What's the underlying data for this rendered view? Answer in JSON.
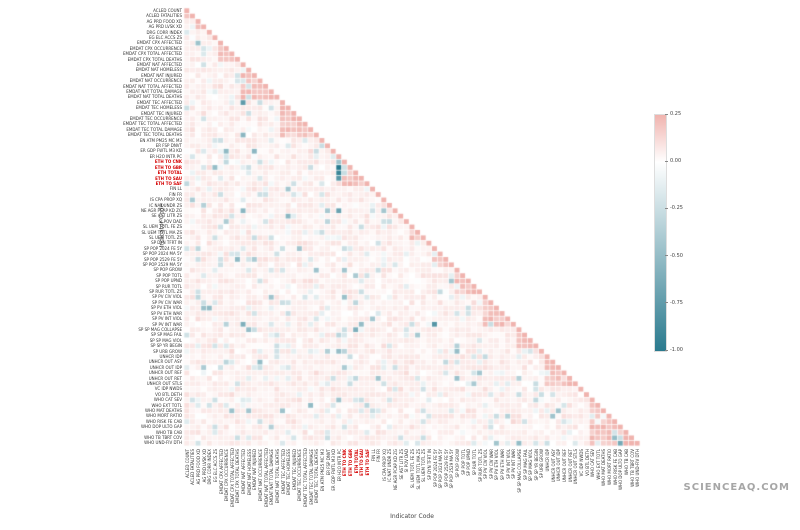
{
  "watermark": "SCIENCEAQ.COM",
  "chart_data": {
    "type": "heatmap",
    "title": "",
    "xlabel": "Indicator Code",
    "ylabel": "Indicator Code",
    "triangular": "lower",
    "grid": false,
    "legend_position": "right-colorbar",
    "labels": [
      "ACLED COUNT",
      "ACLED FATALITIES",
      "AG PRD FOOD XD",
      "AG PRD LVSK XD",
      "DRG CORR INDEX",
      "EG ELC ACCS ZS",
      "EMDAT CPX AFFECTED",
      "EMDAT CPX OCCURRENCE",
      "EMDAT CPX TOTAL AFFECTED",
      "EMDAT CPX TOTAL DEATHS",
      "EMDAT NAT AFFECTED",
      "EMDAT NAT HOMELESS",
      "EMDAT NAT INJURED",
      "EMDAT NAT OCCURRENCE",
      "EMDAT NAT TOTAL AFFECTED",
      "EMDAT NAT TOTAL DAMAGE",
      "EMDAT NAT TOTAL DEATHS",
      "EMDAT TEC AFFECTED",
      "EMDAT TEC HOMELESS",
      "EMDAT TEC INJURED",
      "EMDAT TEC OCCURRENCE",
      "EMDAT TEC TOTAL AFFECTED",
      "EMDAT TEC TOTAL DAMAGE",
      "EMDAT TEC TOTAL DEATHS",
      "EN ATM PM25 MC M3",
      "ER FSP DNVT",
      "ER GDP FWTL M3 KD",
      "ER H2O INTR PC",
      "ETH TO CNK",
      "ETH TO GBR",
      "ETH TOTAL",
      "ETH TO SAU",
      "ETH TO SAF",
      "FIN LL",
      "FIN FR",
      "IS CPA PROP XQ",
      "IC NAT UNDR ZS",
      "NE AGR PCAP KD ZG",
      "SE AST LITR ZS",
      "SI POV DAD",
      "SL UEM TOTL FE ZS",
      "SL UEM TOTL MA ZS",
      "SL UEM TOTL ZS",
      "SP DYN TFRT IN",
      "SP POP 2024 FE 5Y",
      "SP POP 2024 MA 5Y",
      "SP POP 2529 FE 5Y",
      "SP POP 2529 MA 5Y",
      "SP POP GROW",
      "SP POP TOTL",
      "SP POP UPND",
      "SP RUR TOTL",
      "SP RUR TOTL ZS",
      "SP PV CIV VIOL",
      "SP PV CIV WAR",
      "SP PV ETH VIOL",
      "SP PV ETH WAR",
      "SP PV INT VIOL",
      "SP PV INT WAR",
      "SP SP MAG COLLAPSE",
      "SP SP MAG FAIL",
      "SP SP MAG VIOL",
      "SP SP YR BEGIN",
      "SP URB GROW",
      "UNHCR IDP",
      "UNHCR OUT ASY",
      "UNHCR OUT IDP",
      "UNHCR OUT REF",
      "UNHCR OUT RET",
      "UNHCR OUT STLS",
      "VC IDP NWDS",
      "VO BTL DETH",
      "WHO CAT SEV",
      "WHO EXT TOTL",
      "WHO MAT DEATHS",
      "WHO MORT RATIO",
      "WHO RISK FE CAB",
      "WHO DOP ULTO GAP",
      "WHO TB CAB",
      "WHO TB TBRT COV",
      "WHO UND-FIV DTH"
    ],
    "red_indices": [
      28,
      29,
      30,
      31,
      32
    ],
    "red_labels": [
      "ETH TO CNK",
      "ETH TO GBR",
      "ETH TOTAL",
      "ETH TO SAU",
      "ETH TO SAF"
    ],
    "colorbar": {
      "vmax": 0.25,
      "vmin": -1.0,
      "positive_color": "#f0b3ae",
      "mid_color": "#ffffff",
      "negative_color": "#2a7a8e",
      "ticks": [
        {
          "v": 0.25,
          "label": "0.25"
        },
        {
          "v": 0.0,
          "label": "0.00"
        },
        {
          "v": -0.25,
          "label": "-0.25"
        },
        {
          "v": -0.5,
          "label": "-0.50"
        },
        {
          "v": -0.75,
          "label": "-0.75"
        },
        {
          "v": -1.0,
          "label": "-1.00"
        }
      ]
    },
    "seed": 42,
    "group_blocks": [
      [
        0,
        1
      ],
      [
        2,
        3
      ],
      [
        6,
        9
      ],
      [
        10,
        16
      ],
      [
        17,
        23
      ],
      [
        28,
        32
      ],
      [
        40,
        42
      ],
      [
        44,
        47
      ],
      [
        48,
        52
      ],
      [
        53,
        58
      ],
      [
        59,
        62
      ],
      [
        64,
        69
      ],
      [
        72,
        80
      ]
    ],
    "hotspots": [
      [
        29,
        27,
        -1.0
      ],
      [
        30,
        27,
        -0.92
      ],
      [
        31,
        27,
        -0.78
      ],
      [
        28,
        27,
        -0.45
      ],
      [
        17,
        10,
        -0.75
      ],
      [
        37,
        27,
        -0.7
      ],
      [
        37,
        10,
        -0.55
      ],
      [
        58,
        44,
        -0.8
      ],
      [
        59,
        30,
        -0.6
      ],
      [
        63,
        27,
        -0.5
      ],
      [
        58,
        10,
        -0.6
      ],
      [
        65,
        13,
        -0.5
      ],
      [
        72,
        27,
        -0.45
      ],
      [
        80,
        77,
        -0.65
      ],
      [
        79,
        76,
        -0.5
      ]
    ]
  }
}
